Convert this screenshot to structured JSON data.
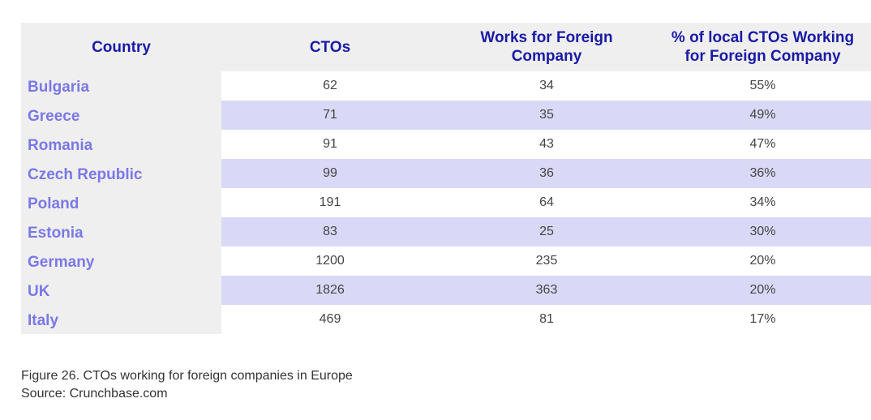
{
  "chart_data": {
    "type": "table",
    "columns": [
      "Country",
      "CTOs",
      "Works for Foreign Company",
      "% of local CTOs Working for Foreign Company"
    ],
    "header_lines": [
      [
        "Country"
      ],
      [
        "CTOs"
      ],
      [
        "Works for Foreign",
        "Company"
      ],
      [
        "% of local CTOs Working",
        "for Foreign Company"
      ]
    ],
    "rows": [
      {
        "country": "Bulgaria",
        "ctos": "62",
        "foreign": "34",
        "pct": "55%"
      },
      {
        "country": "Greece",
        "ctos": "71",
        "foreign": "35",
        "pct": "49%"
      },
      {
        "country": "Romania",
        "ctos": "91",
        "foreign": "43",
        "pct": "47%"
      },
      {
        "country": "Czech Republic",
        "ctos": "99",
        "foreign": "36",
        "pct": "36%"
      },
      {
        "country": "Poland",
        "ctos": "191",
        "foreign": "64",
        "pct": "34%"
      },
      {
        "country": "Estonia",
        "ctos": "83",
        "foreign": "25",
        "pct": "30%"
      },
      {
        "country": "Germany",
        "ctos": "1200",
        "foreign": "235",
        "pct": "20%"
      },
      {
        "country": "UK",
        "ctos": "1826",
        "foreign": "363",
        "pct": "20%"
      },
      {
        "country": "Italy",
        "ctos": "469",
        "foreign": "81",
        "pct": "17%"
      }
    ],
    "colors": {
      "header_text": "#1a1aa6",
      "country_text": "#7b78e6",
      "header_bg": "#efefef",
      "stripe_bg": "#d9d9f7"
    }
  },
  "caption": {
    "figure": "Figure 26. CTOs working for foreign companies in Europe",
    "source": "Source: Crunchbase.com"
  }
}
